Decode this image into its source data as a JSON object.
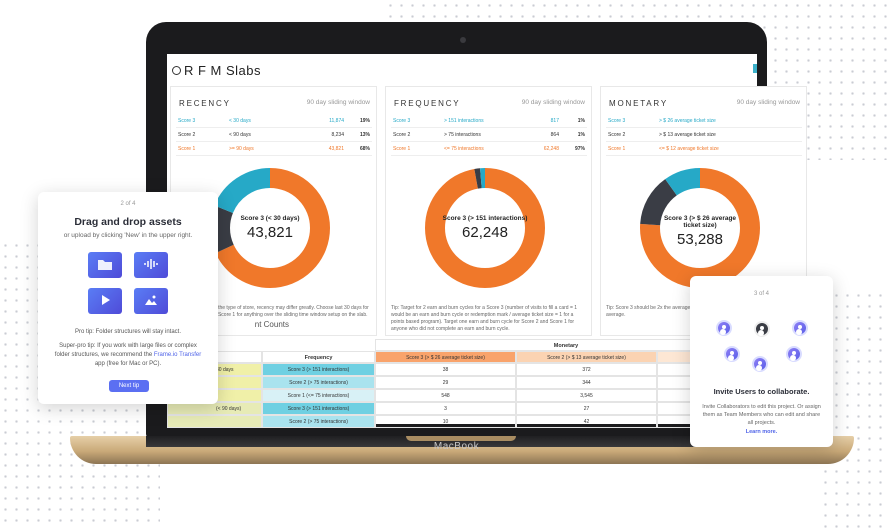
{
  "device": {
    "label": "MacBook"
  },
  "app": {
    "title": "R F M Slabs"
  },
  "panels": [
    {
      "name": "RECENCY",
      "note": "90 day sliding window",
      "rows": [
        {
          "score": "Score 3",
          "range": "< 30 days",
          "count": "11,874",
          "pct": "19%",
          "color": "#26a9c7"
        },
        {
          "score": "Score 2",
          "range": "< 90 days",
          "count": "8,234",
          "pct": "13%",
          "color": "#333333"
        },
        {
          "score": "Score 1",
          "range": ">= 90 days",
          "count": "43,821",
          "pct": "68%",
          "color": "#f0782a"
        }
      ],
      "donut": {
        "title": "Score 3 (< 30 days)",
        "value": "43,821",
        "segments": [
          {
            "color": "#f0782a",
            "fraction": 0.68
          },
          {
            "color": "#3a3d45",
            "fraction": 0.13
          },
          {
            "color": "#26a9c7",
            "fraction": 0.19
          }
        ]
      },
      "tip": "Tip: Depending on the type of store, recency may differ greatly. Choose last 30 days for a Score 3 and use Score 1 for anything over the sliding time window setup on the slab."
    },
    {
      "name": "FREQUENCY",
      "note": "90 day sliding window",
      "rows": [
        {
          "score": "Score 3",
          "range": "> 151 interactions",
          "count": "817",
          "pct": "1%",
          "color": "#26a9c7"
        },
        {
          "score": "Score 2",
          "range": "> 75 interactions",
          "count": "864",
          "pct": "1%",
          "color": "#333333"
        },
        {
          "score": "Score 1",
          "range": "<= 75 interactions",
          "count": "62,248",
          "pct": "97%",
          "color": "#f0782a"
        }
      ],
      "donut": {
        "title": "Score 3 (> 151 interactions)",
        "value": "62,248",
        "segments": [
          {
            "color": "#f0782a",
            "fraction": 0.97
          },
          {
            "color": "#3a3d45",
            "fraction": 0.015
          },
          {
            "color": "#26a9c7",
            "fraction": 0.015
          }
        ]
      },
      "tip": "Tip: Target for 2 earn and burn cycles for a Score 3 (number of visits to fill a card = 1 would be an earn and burn cycle or redemption mark / average ticket size = 1 for a points based program). Target one earn and burn cycle for Score 2 and Score 1 for anyone who did not complete an earn and burn cycle."
    },
    {
      "name": "MONETARY",
      "note": "90 day sliding window",
      "rows": [
        {
          "score": "Score 3",
          "range": "> $ 26 average ticket size",
          "count": "",
          "pct": "",
          "color": "#26a9c7"
        },
        {
          "score": "Score 2",
          "range": "> $ 13 average ticket size",
          "count": "",
          "pct": "",
          "color": "#333333"
        },
        {
          "score": "Score 1",
          "range": "<= $ 12 average ticket size",
          "count": "",
          "pct": "",
          "color": "#f0782a"
        }
      ],
      "donut": {
        "title": "Score 3 (> $ 26 average ticket size)",
        "value": "53,288",
        "segments": [
          {
            "color": "#f0782a",
            "fraction": 0.76
          },
          {
            "color": "#3a3d45",
            "fraction": 0.14
          },
          {
            "color": "#26a9c7",
            "fraction": 0.1
          }
        ]
      },
      "tip": "Tip: Score 3 should be 2x the average ticket size. Score 1 should be less than half of the average."
    }
  ],
  "counts": {
    "title": "nt Counts",
    "monetary_header": "Monetary",
    "col_recency": "ncy",
    "col_frequency": "Frequency",
    "col_m3": "Score 3 (> $ 26 average ticket size)",
    "col_m2": "Score 2 (> $ 13 average ticket size)",
    "rows": [
      {
        "rec": "30 days",
        "freq": "Score 3 (> 151 interactions)",
        "m3": "38",
        "m2": "372"
      },
      {
        "rec": "",
        "freq": "Score 2 (> 75 interactions)",
        "m3": "29",
        "m2": "344"
      },
      {
        "rec": "",
        "freq": "Score 1 (<= 75 interactions)",
        "m3": "548",
        "m2": "3,545"
      },
      {
        "rec": "(< 90 days)",
        "freq": "Score 3 (> 151 interactions)",
        "m3": "3",
        "m2": "27"
      },
      {
        "rec": "",
        "freq": "Score 2 (> 75 interactions)",
        "m3": "10",
        "m2": "42"
      }
    ]
  },
  "popup_left": {
    "step": "2 of 4",
    "title": "Drag and drop assets",
    "subtitle": "or upload by clicking 'New' in the upper right.",
    "tiles": [
      "folder-icon",
      "audio-icon",
      "video-icon",
      "image-icon"
    ],
    "tip1": "Pro tip: Folder structures will stay intact.",
    "tip2_prefix": "Super-pro tip: If you work with large files or complex folder structures, we recommend the",
    "tip2_link": "Frame.io Transfer",
    "tip2_suffix": "app (free for Mac or PC).",
    "button": "Next tip"
  },
  "popup_right": {
    "step": "3 of 4",
    "title": "Invite Users to collaborate.",
    "body": "Invite Collaborators to edit this project. Or assign them as Team Members who can edit and share all projects.",
    "link": "Learn more."
  }
}
